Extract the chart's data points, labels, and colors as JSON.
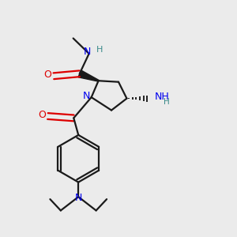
{
  "bg_color": "#ebebeb",
  "bond_color": "#1a1a1a",
  "N_color": "#0000ee",
  "O_color": "#dd0000",
  "H_color": "#3a8a8a",
  "lw": 1.6,
  "fig_size": [
    3.0,
    3.0
  ],
  "dpi": 100,
  "xlim": [
    0.0,
    1.0
  ],
  "ylim": [
    0.0,
    1.0
  ]
}
